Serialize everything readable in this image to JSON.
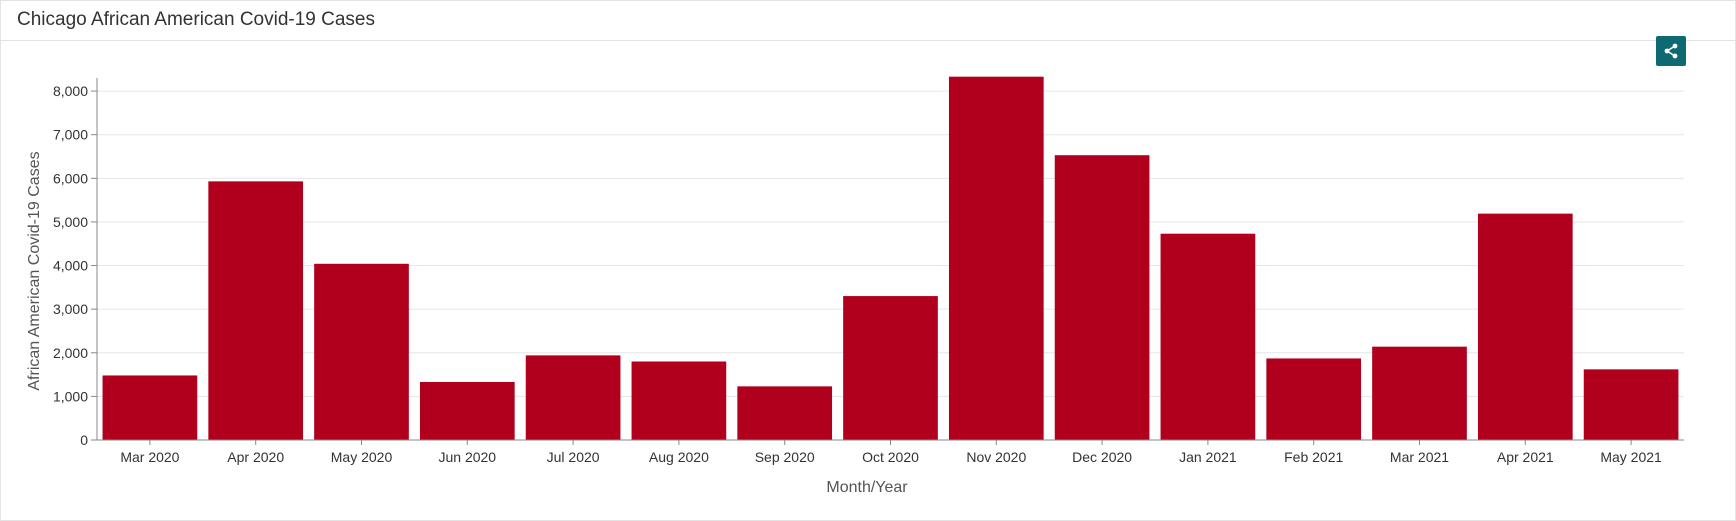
{
  "panel": {
    "title": "Chicago African American Covid-19 Cases"
  },
  "share": {
    "icon": "share-icon",
    "color": "#0e6a72"
  },
  "chart_data": {
    "type": "bar",
    "categories": [
      "Mar 2020",
      "Apr 2020",
      "May 2020",
      "Jun 2020",
      "Jul 2020",
      "Aug 2020",
      "Sep 2020",
      "Oct 2020",
      "Nov 2020",
      "Dec 2020",
      "Jan 2021",
      "Feb 2021",
      "Mar 2021",
      "Apr 2021",
      "May 2021"
    ],
    "values": [
      1480,
      5930,
      4040,
      1330,
      1940,
      1800,
      1230,
      3300,
      8330,
      6530,
      4730,
      1870,
      2140,
      5190,
      1620
    ],
    "title": "",
    "xlabel": "Month/Year",
    "ylabel": "African American Covid-19 Cases",
    "ylim": [
      0,
      8300
    ],
    "yticks": [
      0,
      1000,
      2000,
      3000,
      4000,
      5000,
      6000,
      7000,
      8000
    ],
    "ytick_labels": [
      "0",
      "1,000",
      "2,000",
      "3,000",
      "4,000",
      "5,000",
      "6,000",
      "7,000",
      "8,000"
    ],
    "grid": true,
    "bar_color": "#b0001e",
    "grid_color": "#e6e6e6",
    "axis_color": "#888888",
    "legend": "none"
  }
}
